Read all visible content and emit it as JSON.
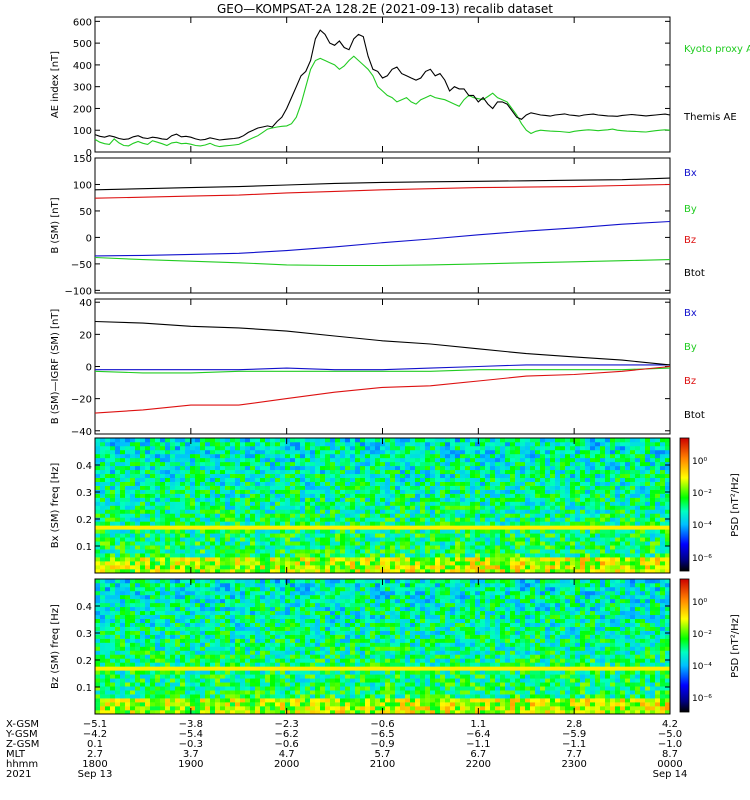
{
  "title": "GEO—KOMPSAT-2A 128.2E (2021-09-13) recalib dataset",
  "colors": {
    "black": "#000000",
    "green": "#22cc22",
    "red": "#dd1111",
    "blue": "#1111cc"
  },
  "chart_data": [
    {
      "type": "line",
      "panel": "ae",
      "ylabel": "AE index [nT]",
      "ylim": [
        0,
        620
      ],
      "yticks": [
        0,
        100,
        200,
        300,
        400,
        500,
        600
      ],
      "yticklabels": [
        "0",
        "100",
        "200",
        "300",
        "400",
        "500",
        "600"
      ],
      "x": [
        0,
        0.05,
        0.1,
        0.15,
        0.2,
        0.25,
        0.3,
        0.35,
        0.4,
        0.45,
        0.5,
        0.55,
        0.6,
        0.65,
        0.7,
        0.75,
        0.8,
        0.85,
        0.9,
        0.95,
        1,
        1.05,
        1.1,
        1.15,
        1.2,
        1.25,
        1.3,
        1.35,
        1.4,
        1.45,
        1.5,
        1.55,
        1.6,
        1.65,
        1.7,
        1.75,
        1.8,
        1.85,
        1.9,
        1.95,
        2,
        2.05,
        2.1,
        2.15,
        2.2,
        2.25,
        2.3,
        2.35,
        2.4,
        2.45,
        2.5,
        2.55,
        2.6,
        2.65,
        2.7,
        2.75,
        2.8,
        2.85,
        2.9,
        2.95,
        3,
        3.05,
        3.1,
        3.15,
        3.2,
        3.25,
        3.3,
        3.35,
        3.4,
        3.45,
        3.5,
        3.55,
        3.6,
        3.65,
        3.7,
        3.75,
        3.8,
        3.85,
        3.9,
        3.95,
        4,
        4.05,
        4.1,
        4.15,
        4.2,
        4.25,
        4.3,
        4.35,
        4.4,
        4.45,
        4.5,
        4.55,
        4.6,
        4.65,
        4.7,
        4.75,
        4.8,
        4.85,
        4.9,
        4.95,
        5,
        5.05,
        5.1,
        5.15,
        5.2,
        5.25,
        5.3,
        5.35,
        5.4,
        5.45,
        5.5,
        5.55,
        5.6,
        5.65,
        5.7,
        5.75,
        5.8,
        5.85,
        5.9,
        5.95,
        6
      ],
      "series": [
        {
          "name": "Kyoto proxy AE",
          "color": "#22cc22",
          "values": [
            58,
            45,
            38,
            35,
            60,
            42,
            30,
            28,
            40,
            48,
            40,
            35,
            52,
            45,
            38,
            30,
            42,
            45,
            38,
            40,
            36,
            30,
            28,
            32,
            40,
            30,
            25,
            28,
            30,
            32,
            35,
            45,
            55,
            65,
            75,
            90,
            105,
            110,
            115,
            118,
            120,
            130,
            160,
            220,
            300,
            380,
            420,
            430,
            420,
            410,
            400,
            380,
            395,
            420,
            440,
            420,
            400,
            380,
            350,
            300,
            280,
            260,
            250,
            230,
            240,
            250,
            230,
            220,
            240,
            250,
            260,
            250,
            245,
            240,
            230,
            220,
            210,
            240,
            260,
            250,
            245,
            240,
            255,
            270,
            250,
            240,
            230,
            200,
            170,
            130,
            100,
            85,
            95,
            100,
            98,
            96,
            95,
            94,
            92,
            90,
            95,
            98,
            100,
            102,
            100,
            98,
            100,
            102,
            105,
            100,
            98,
            96,
            95,
            94,
            93,
            92,
            95,
            98,
            100,
            102,
            100
          ]
        },
        {
          "name": "Themis AE",
          "color": "#000000",
          "values": [
            80,
            72,
            68,
            75,
            70,
            62,
            58,
            60,
            70,
            75,
            65,
            62,
            68,
            65,
            60,
            58,
            75,
            82,
            70,
            72,
            68,
            60,
            55,
            58,
            65,
            60,
            55,
            58,
            60,
            62,
            65,
            75,
            90,
            100,
            110,
            115,
            120,
            115,
            140,
            160,
            200,
            250,
            300,
            350,
            370,
            420,
            520,
            560,
            540,
            500,
            490,
            510,
            480,
            470,
            520,
            540,
            530,
            440,
            380,
            370,
            340,
            350,
            380,
            390,
            360,
            350,
            340,
            330,
            340,
            370,
            380,
            350,
            360,
            330,
            280,
            300,
            290,
            290,
            260,
            260,
            230,
            250,
            220,
            200,
            230,
            230,
            220,
            190,
            160,
            150,
            170,
            180,
            175,
            170,
            168,
            165,
            170,
            172,
            175,
            170,
            168,
            165,
            170,
            172,
            174,
            170,
            168,
            166,
            165,
            164,
            168,
            170,
            172,
            170,
            168,
            166,
            168,
            170,
            172,
            174,
            170
          ]
        }
      ]
    },
    {
      "type": "line",
      "panel": "b",
      "ylabel": "B (SM) [nT]",
      "ylim": [
        -105,
        150
      ],
      "yticks": [
        -100,
        -50,
        0,
        50,
        100,
        150
      ],
      "yticklabels": [
        "−100",
        "−50",
        "0",
        "50",
        "100",
        "150"
      ],
      "x": [
        0,
        0.5,
        1,
        1.5,
        2,
        2.5,
        3,
        3.5,
        4,
        4.5,
        5,
        5.5,
        6
      ],
      "series": [
        {
          "name": "Bx",
          "color": "#1111cc",
          "values": [
            -35,
            -34,
            -32,
            -30,
            -25,
            -18,
            -10,
            -3,
            5,
            12,
            18,
            25,
            30
          ]
        },
        {
          "name": "By",
          "color": "#22cc22",
          "values": [
            -38,
            -42,
            -45,
            -48,
            -52,
            -53,
            -53,
            -52,
            -50,
            -48,
            -46,
            -44,
            -42
          ]
        },
        {
          "name": "Bz",
          "color": "#dd1111",
          "values": [
            74,
            76,
            78,
            80,
            84,
            87,
            90,
            92,
            94,
            95,
            96,
            98,
            100
          ]
        },
        {
          "name": "Btot",
          "color": "#000000",
          "values": [
            90,
            92,
            94,
            96,
            99,
            102,
            104,
            105,
            106,
            107,
            108,
            109,
            112
          ]
        }
      ]
    },
    {
      "type": "line",
      "panel": "dbigrf",
      "ylabel": "B (SM)—IGRF (SM) [nT]",
      "ylim": [
        -42,
        42
      ],
      "yticks": [
        -40,
        -20,
        0,
        20,
        40
      ],
      "yticklabels": [
        "−40",
        "−20",
        "0",
        "20",
        "40"
      ],
      "x": [
        0,
        0.5,
        1,
        1.5,
        2,
        2.5,
        3,
        3.5,
        4,
        4.5,
        5,
        5.5,
        6
      ],
      "series": [
        {
          "name": "Bx",
          "color": "#1111cc",
          "values": [
            -2,
            -2,
            -2,
            -2,
            -1,
            -2,
            -2,
            -1,
            0,
            1,
            1,
            1,
            1
          ]
        },
        {
          "name": "By",
          "color": "#22cc22",
          "values": [
            -3,
            -4,
            -4,
            -3,
            -3,
            -3,
            -3,
            -3,
            -2,
            -2,
            -2,
            -2,
            -1
          ]
        },
        {
          "name": "Bz",
          "color": "#dd1111",
          "values": [
            -29,
            -27,
            -24,
            -24,
            -20,
            -16,
            -13,
            -12,
            -9,
            -6,
            -5,
            -3,
            0
          ]
        },
        {
          "name": "Btot",
          "color": "#000000",
          "values": [
            28,
            27,
            25,
            24,
            22,
            19,
            16,
            14,
            11,
            8,
            6,
            4,
            1
          ]
        }
      ]
    },
    {
      "type": "heatmap",
      "panel": "spec_bx",
      "ylabel": "Bx (SM) freq [Hz]",
      "ylim": [
        0,
        0.5
      ],
      "yticks": [
        0.1,
        0.2,
        0.3,
        0.4
      ],
      "yticklabels": [
        "0.1",
        "0.2",
        "0.3",
        "0.4"
      ],
      "colorbar_label": "PSD [nT²/Hz]",
      "colorbar_ticks": [
        "10⁰",
        "10⁻²",
        "10⁻⁴",
        "10⁻⁶"
      ]
    },
    {
      "type": "heatmap",
      "panel": "spec_bz",
      "ylabel": "Bz (SM) freq [Hz]",
      "ylim": [
        0,
        0.5
      ],
      "yticks": [
        0.1,
        0.2,
        0.3,
        0.4
      ],
      "yticklabels": [
        "0.1",
        "0.2",
        "0.3",
        "0.4"
      ],
      "colorbar_label": "PSD [nT²/Hz]",
      "colorbar_ticks": [
        "10⁰",
        "10⁻²",
        "10⁻⁴",
        "10⁻⁶"
      ]
    }
  ],
  "ae_legend": {
    "kyoto": "Kyoto proxy AE",
    "themis": "Themis AE"
  },
  "b_legend": [
    "Bx",
    "By",
    "Bz",
    "Btot"
  ],
  "dbigrf_legend": [
    "Bx",
    "By",
    "Bz",
    "Btot"
  ],
  "x_axis": {
    "row_labels": [
      "X-GSM",
      "Y-GSM",
      "Z-GSM",
      "MLT",
      "hhmm",
      "2021"
    ],
    "columns": [
      {
        "xgsm": "−5.1",
        "ygsm": "−4.2",
        "zgsm": "0.1",
        "mlt": "2.7",
        "hhmm": "1800",
        "date": "Sep 13"
      },
      {
        "xgsm": "−3.8",
        "ygsm": "−5.4",
        "zgsm": "−0.3",
        "mlt": "3.7",
        "hhmm": "1900",
        "date": ""
      },
      {
        "xgsm": "−2.3",
        "ygsm": "−6.2",
        "zgsm": "−0.6",
        "mlt": "4.7",
        "hhmm": "2000",
        "date": ""
      },
      {
        "xgsm": "−0.6",
        "ygsm": "−6.5",
        "zgsm": "−0.9",
        "mlt": "5.7",
        "hhmm": "2100",
        "date": ""
      },
      {
        "xgsm": "1.1",
        "ygsm": "−6.4",
        "zgsm": "−1.1",
        "mlt": "6.7",
        "hhmm": "2200",
        "date": ""
      },
      {
        "xgsm": "2.8",
        "ygsm": "−5.9",
        "zgsm": "−1.1",
        "mlt": "7.7",
        "hhmm": "2300",
        "date": ""
      },
      {
        "xgsm": "4.2",
        "ygsm": "−5.0",
        "zgsm": "−1.0",
        "mlt": "8.7",
        "hhmm": "0000",
        "date": "Sep 14"
      }
    ]
  }
}
